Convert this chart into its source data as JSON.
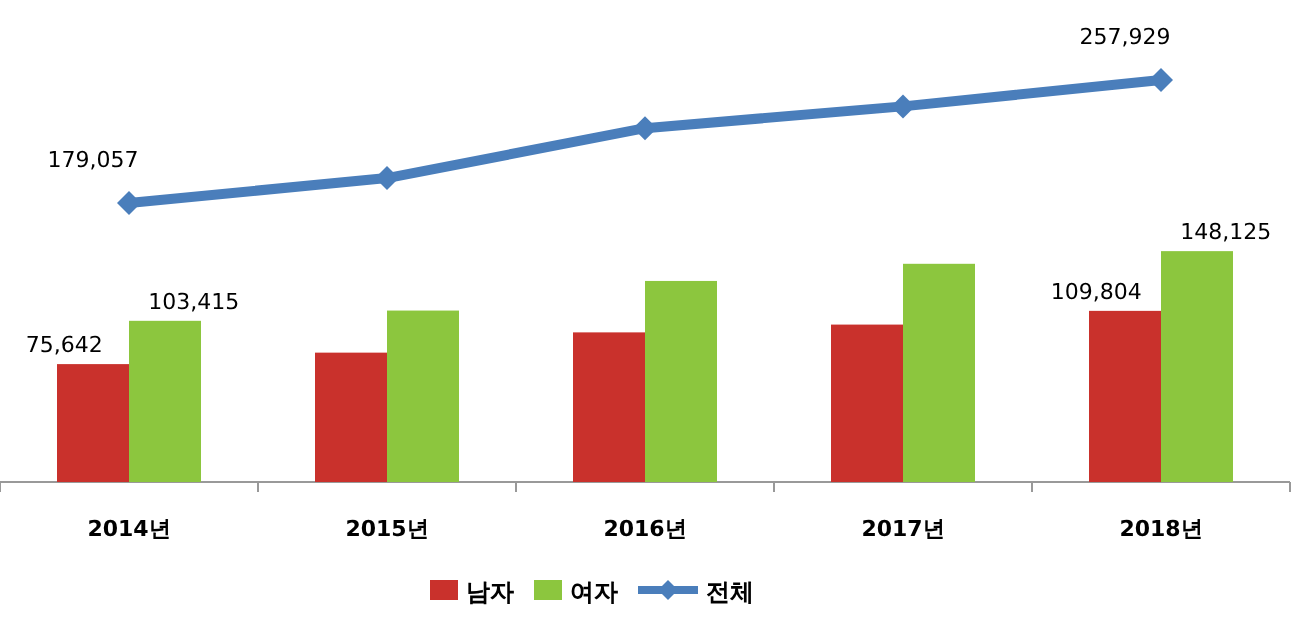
{
  "chart_data": {
    "type": "bar",
    "categories": [
      "2014년",
      "2015년",
      "2016년",
      "2017년",
      "2018년"
    ],
    "series": [
      {
        "name": "남자",
        "color": "#c9312c",
        "values": [
          75642,
          83000,
          96000,
          101000,
          109804
        ],
        "value_labels": [
          "75,642",
          null,
          null,
          null,
          "109,804"
        ]
      },
      {
        "name": "여자",
        "color": "#8cc63e",
        "values": [
          103415,
          110000,
          129000,
          140000,
          148125
        ],
        "value_labels": [
          "103,415",
          null,
          null,
          null,
          "148,125"
        ]
      },
      {
        "name": "전체",
        "type": "line",
        "color": "#4a7ebb",
        "marker": "diamond",
        "values": [
          179057,
          195000,
          227000,
          241000,
          257929
        ],
        "value_labels": [
          "179,057",
          null,
          null,
          null,
          "257,929"
        ]
      }
    ],
    "legend": "bottom"
  }
}
